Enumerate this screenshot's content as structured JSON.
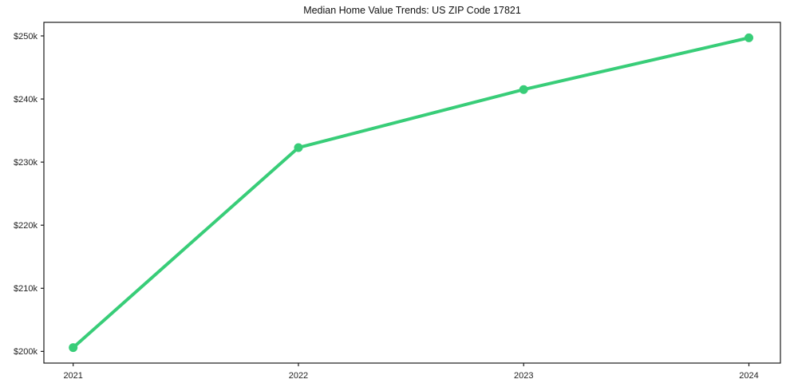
{
  "figure": {
    "background_color": "#ffffff"
  },
  "chart_data": {
    "type": "line",
    "title": "Median Home Value Trends: US ZIP Code 17821",
    "x": [
      2021,
      2022,
      2023,
      2024
    ],
    "values": [
      200600,
      232300,
      241500,
      249700
    ],
    "x_ticks": [
      {
        "value": 2021,
        "label": "2021"
      },
      {
        "value": 2022,
        "label": "2022"
      },
      {
        "value": 2023,
        "label": "2023"
      },
      {
        "value": 2024,
        "label": "2024"
      }
    ],
    "y_ticks": [
      {
        "value": 200000,
        "label": "$200k"
      },
      {
        "value": 210000,
        "label": "$210k"
      },
      {
        "value": 220000,
        "label": "$220k"
      },
      {
        "value": 230000,
        "label": "$230k"
      },
      {
        "value": 240000,
        "label": "$240k"
      },
      {
        "value": 250000,
        "label": "$250k"
      }
    ],
    "xlim": [
      2020.87,
      2024.14
    ],
    "ylim": [
      198150,
      252150
    ],
    "xlabel": "",
    "ylabel": "",
    "grid": false,
    "legend": "none",
    "line_color": "#38cd78",
    "axis_color": "#1a1a1a",
    "text_color": "#1f1f1f"
  }
}
